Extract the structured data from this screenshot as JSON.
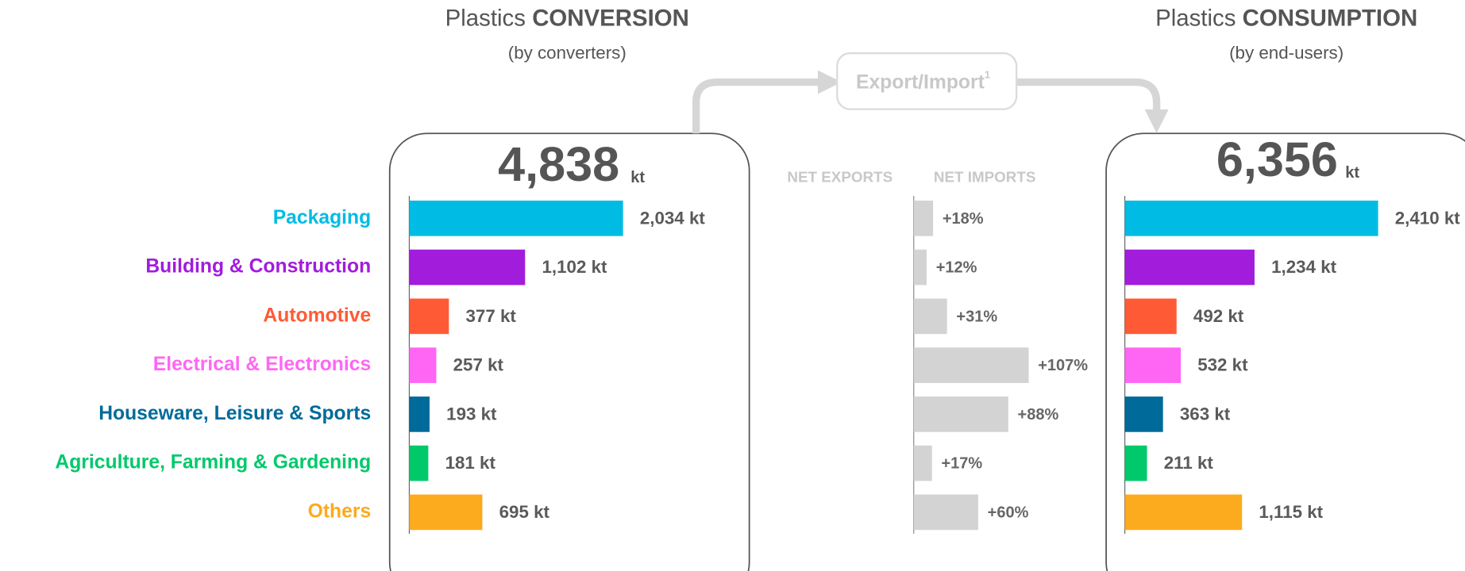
{
  "chart_data": [
    {
      "type": "bar",
      "orientation": "horizontal",
      "title": "Plastics",
      "title_emphasis": "CONVERSION",
      "subtitle": "(by converters)",
      "total": "4,838",
      "unit": "kt",
      "categories": [
        "Packaging",
        "Building & Construction",
        "Automotive",
        "Electrical & Electronics",
        "Houseware, Leisure & Sports",
        "Agriculture, Farming & Gardening",
        "Others"
      ],
      "colors": [
        "#00bce4",
        "#a21cdb",
        "#ff5a36",
        "#ff66f4",
        "#006b9a",
        "#00c96b",
        "#fcaa1e"
      ],
      "values": [
        2034,
        1102,
        377,
        257,
        193,
        181,
        695
      ],
      "value_labels": [
        "2,034 kt",
        "1,102 kt",
        "377 kt",
        "257 kt",
        "193 kt",
        "181 kt",
        "695 kt"
      ],
      "xlim": [
        0,
        3200
      ]
    },
    {
      "type": "bar",
      "orientation": "horizontal",
      "flow_label": "Export/Import",
      "footnote_marker": "1",
      "axis_labels": [
        "NET EXPORTS",
        "NET IMPORTS"
      ],
      "color": "#d3d3d3",
      "values": [
        18,
        12,
        31,
        107,
        88,
        17,
        60
      ],
      "value_labels": [
        "+18%",
        "+12%",
        "+31%",
        "+107%",
        "+88%",
        "+17%",
        "+60%"
      ],
      "xlim": [
        0,
        120
      ]
    },
    {
      "type": "bar",
      "orientation": "horizontal",
      "title": "Plastics",
      "title_emphasis": "CONSUMPTION",
      "subtitle": "(by end-users)",
      "total": "6,356",
      "unit": "kt",
      "values": [
        2410,
        1234,
        492,
        532,
        363,
        211,
        1115
      ],
      "value_labels": [
        "2,410 kt",
        "1,234 kt",
        "492 kt",
        "532 kt",
        "363 kt",
        "211 kt",
        "1,115 kt"
      ],
      "xlim": [
        0,
        3200
      ]
    }
  ]
}
